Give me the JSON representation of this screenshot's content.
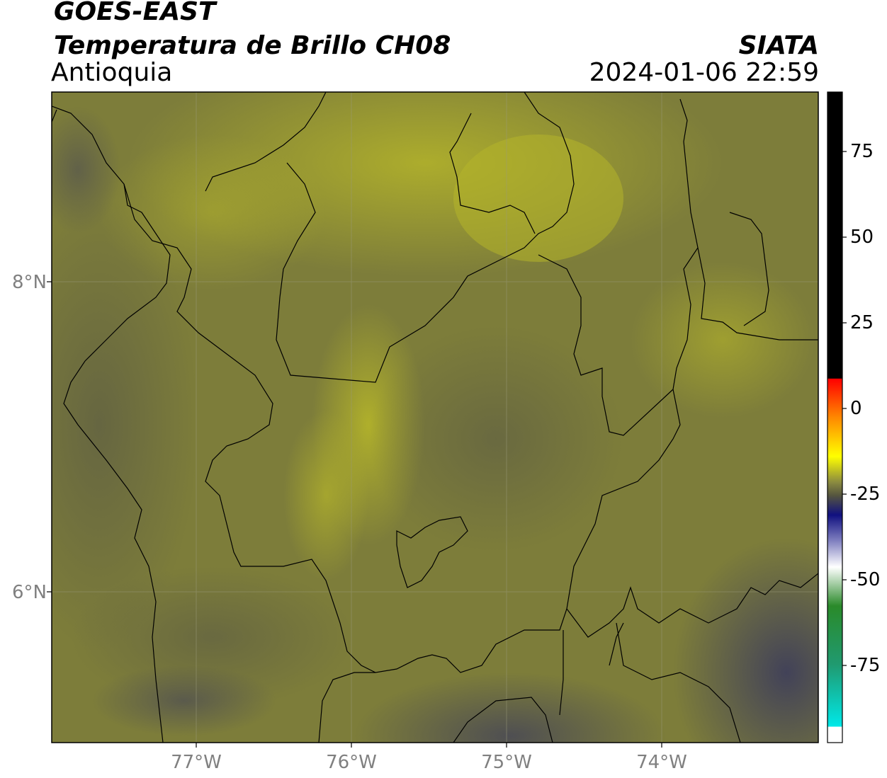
{
  "header": {
    "satellite": "GOES-EAST",
    "product": "Temperatura de Brillo CH08",
    "region": "Antioquia",
    "agency": "SIATA",
    "datetime": "2024-01-06 22:59"
  },
  "axes": {
    "lat_labels": [
      "8°N",
      "6°N"
    ],
    "lon_labels": [
      "77°W",
      "76°W",
      "75°W",
      "74°W"
    ]
  },
  "colorbar": {
    "tick_labels": [
      "75",
      "50",
      "25",
      "0",
      "-25",
      "-50",
      "-75"
    ],
    "colors": {
      "top": "#000000",
      "red": "#ff0000",
      "orange": "#ff8800",
      "yellow": "#ffff00",
      "olive": "#8a8a40",
      "navy": "#101080",
      "white": "#ffffff",
      "green": "#2a8a2a",
      "cyan": "#00e8e8"
    }
  },
  "map_colors": {
    "base": "#7d7d3a",
    "bright": "#a9a92c",
    "dark": "#55553f",
    "blue_gray": "#44445c"
  }
}
